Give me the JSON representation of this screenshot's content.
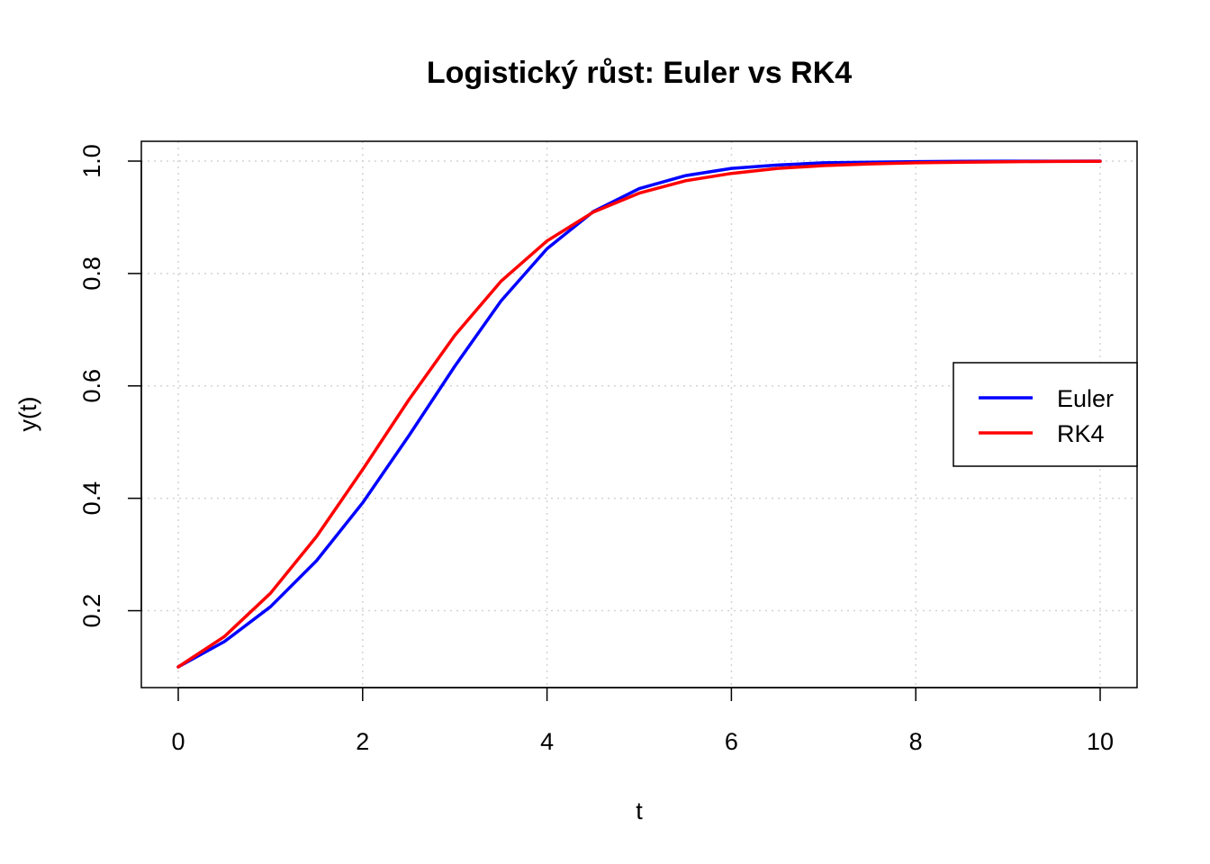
{
  "chart_data": {
    "type": "line",
    "title": "Logistický růst: Euler vs RK4",
    "xlabel": "t",
    "ylabel": "y(t)",
    "xlim": [
      0,
      10
    ],
    "ylim": [
      0.1,
      1.0
    ],
    "x_ticks": [
      0,
      2,
      4,
      6,
      8,
      10
    ],
    "y_ticks": [
      0.2,
      0.4,
      0.6,
      0.8,
      1.0
    ],
    "x_tick_labels": [
      "0",
      "2",
      "4",
      "6",
      "8",
      "10"
    ],
    "y_tick_labels": [
      "0.2",
      "0.4",
      "0.6",
      "0.8",
      "1.0"
    ],
    "grid": true,
    "legend_position": "right",
    "x": [
      0,
      0.5,
      1,
      1.5,
      2,
      2.5,
      3,
      3.5,
      4,
      4.5,
      5,
      5.5,
      6,
      6.5,
      7,
      7.5,
      8,
      8.5,
      9,
      9.5,
      10
    ],
    "series": [
      {
        "name": "Euler",
        "color": "#0000ff",
        "values": [
          0.1,
          0.145,
          0.207,
          0.289,
          0.392,
          0.511,
          0.635,
          0.751,
          0.844,
          0.91,
          0.951,
          0.974,
          0.987,
          0.993,
          0.997,
          0.998,
          0.999,
          0.9995,
          0.9998,
          0.9999,
          1.0
        ]
      },
      {
        "name": "RK4",
        "color": "#ff0000",
        "values": [
          0.1,
          0.154,
          0.231,
          0.332,
          0.451,
          0.575,
          0.69,
          0.786,
          0.858,
          0.909,
          0.943,
          0.965,
          0.978,
          0.987,
          0.992,
          0.995,
          0.997,
          0.998,
          0.9988,
          0.9993,
          0.9996
        ]
      }
    ]
  }
}
